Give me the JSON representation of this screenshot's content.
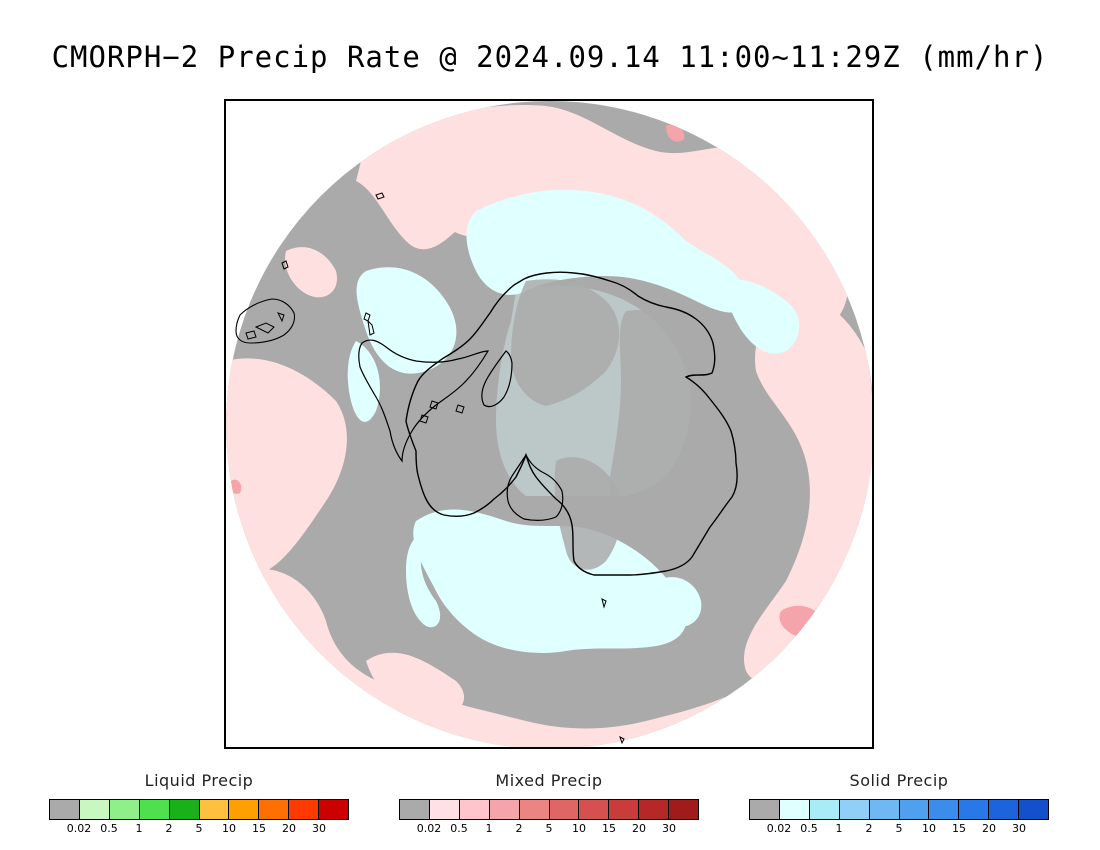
{
  "title": "CMORPH−2 Precip Rate @ 2024.09.14 11:00∼11:29Z (mm/hr)",
  "map": {
    "projection": "south-polar-stereographic",
    "coastline_color": "#000000",
    "colors": {
      "no_precip": "#aaaaaa",
      "mixed_light": "#ffe0e0",
      "solid_light": "#e0ffff",
      "ocean_background": "#ffffff"
    }
  },
  "legends": [
    {
      "title": "Liquid Precip",
      "colors": [
        "#aaaaaa",
        "#c8f7c0",
        "#8ff08a",
        "#4fe04f",
        "#1ab01a",
        "#ffc040",
        "#ffa000",
        "#ff7000",
        "#ff3a00",
        "#cc0000"
      ],
      "ticks": [
        "0.02",
        "0.5",
        "1",
        "2",
        "5",
        "10",
        "15",
        "20",
        "30"
      ]
    },
    {
      "title": "Mixed Precip",
      "colors": [
        "#aaaaaa",
        "#ffe0e6",
        "#ffc4cc",
        "#f4a4aa",
        "#ec8484",
        "#e06666",
        "#d65050",
        "#c83c3c",
        "#b42828",
        "#a01c1c"
      ],
      "ticks": [
        "0.02",
        "0.5",
        "1",
        "2",
        "5",
        "10",
        "15",
        "20",
        "30"
      ]
    },
    {
      "title": "Solid Precip",
      "colors": [
        "#aaaaaa",
        "#e0ffff",
        "#a8ecf8",
        "#90d0f8",
        "#70b8f4",
        "#50a0f0",
        "#3c8cec",
        "#2878e8",
        "#1c64dc",
        "#1450cc"
      ],
      "ticks": [
        "0.02",
        "0.5",
        "1",
        "2",
        "5",
        "10",
        "15",
        "20",
        "30"
      ]
    }
  ]
}
